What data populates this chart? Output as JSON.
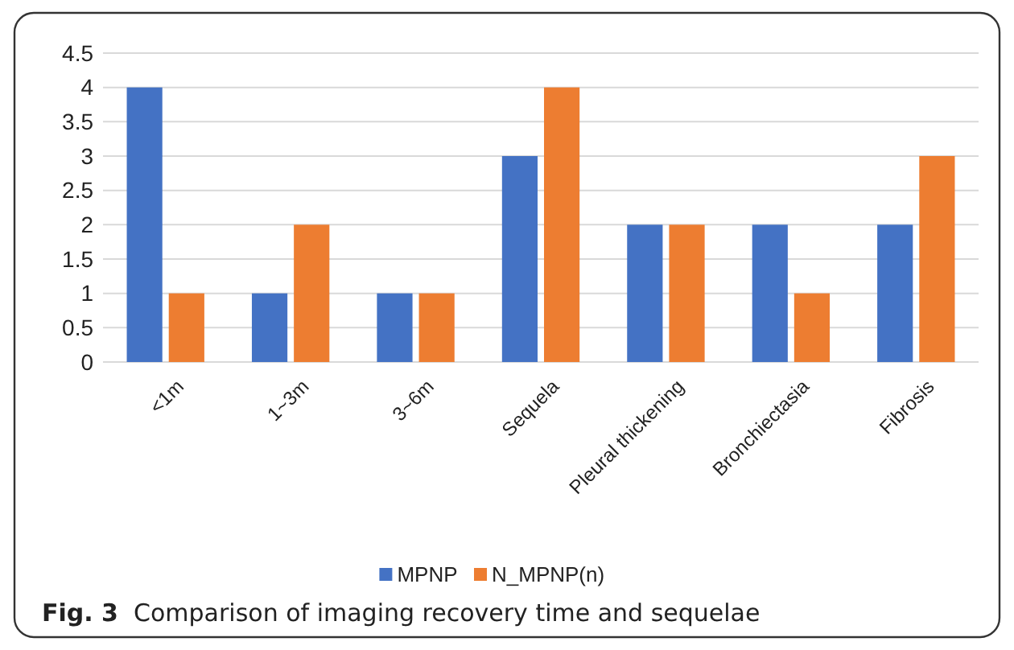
{
  "chart_data": {
    "type": "bar",
    "categories": [
      "<1m",
      "1~3m",
      "3~6m",
      "Sequela",
      "Pleural thickening",
      "Bronchiectasia",
      "Fibrosis"
    ],
    "series": [
      {
        "name": "MPNP",
        "color": "#4472c4",
        "values": [
          4,
          1,
          1,
          3,
          2,
          2,
          2
        ]
      },
      {
        "name": "N_MPNP(n)",
        "color": "#ed7d31",
        "values": [
          1,
          2,
          1,
          4,
          2,
          1,
          3
        ]
      }
    ],
    "ylim": [
      0,
      4.5
    ],
    "yticks": [
      0,
      0.5,
      1,
      1.5,
      2,
      2.5,
      3,
      3.5,
      4,
      4.5
    ],
    "grid": "y",
    "legend": "bottom",
    "annotations": [
      "Fig. 3  Comparison of imaging recovery time and sequelae"
    ]
  }
}
